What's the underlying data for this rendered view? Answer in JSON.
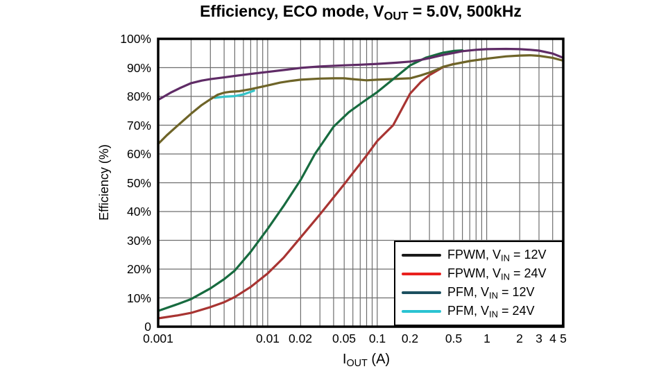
{
  "title": {
    "pre": "Efficiency, ECO mode, V",
    "sub": "OUT",
    "post": " = 5.0V, 500kHz"
  },
  "y_axis": {
    "label": "Efficiency (%)",
    "tick_labels": [
      "0",
      "10%",
      "20%",
      "30%",
      "40%",
      "50%",
      "60%",
      "70%",
      "80%",
      "90%",
      "100%"
    ]
  },
  "x_axis": {
    "label_pre": "I",
    "label_sub": "OUT",
    "label_post": " (A)",
    "ticks": [
      {
        "value": 0.001,
        "label": "0.001"
      },
      {
        "value": 0.01,
        "label": "0.01"
      },
      {
        "value": 0.02,
        "label": "0.02"
      },
      {
        "value": 0.05,
        "label": "0.05"
      },
      {
        "value": 0.1,
        "label": "0.1"
      },
      {
        "value": 0.2,
        "label": "0.2"
      },
      {
        "value": 0.5,
        "label": "0.5"
      },
      {
        "value": 1,
        "label": "1"
      },
      {
        "value": 2,
        "label": "2"
      },
      {
        "value": 3,
        "label": "3"
      },
      {
        "value": 4,
        "label": "4"
      },
      {
        "value": 5,
        "label": "5"
      }
    ]
  },
  "legend": {
    "position": "bottom-right",
    "items": [
      {
        "pre": "FPWM, V",
        "sub": "IN",
        "post": " = 12V",
        "swatch_color": "#1a1a1a"
      },
      {
        "pre": "FPWM, V",
        "sub": "IN",
        "post": " = 24V",
        "swatch_color": "#e9201e"
      },
      {
        "pre": "PFM, V",
        "sub": "IN",
        "post": " = 12V",
        "swatch_color": "#1c5060"
      },
      {
        "pre": "PFM, V",
        "sub": "IN",
        "post": " = 24V",
        "swatch_color": "#2ac3d2"
      }
    ]
  },
  "chart_data": {
    "type": "line",
    "title": "Efficiency, ECO mode, VOUT = 5.0V, 500kHz",
    "xlabel": "IOUT (A)",
    "ylabel": "Efficiency (%)",
    "x_scale": "log",
    "xlim": [
      0.001,
      5
    ],
    "ylim": [
      0,
      100
    ],
    "grid": true,
    "grid_color": "#6e6e6e",
    "frame_color": "#000000",
    "x_gridlines": [
      0.002,
      0.003,
      0.004,
      0.005,
      0.006,
      0.007,
      0.008,
      0.009,
      0.01,
      0.02,
      0.03,
      0.04,
      0.05,
      0.06,
      0.07,
      0.08,
      0.09,
      0.1,
      0.2,
      0.3,
      0.4,
      0.5,
      0.6,
      0.7,
      0.8,
      0.9,
      1,
      2,
      3,
      4,
      5
    ],
    "y_gridlines": [
      10,
      20,
      30,
      40,
      50,
      60,
      70,
      80,
      90
    ],
    "series": [
      {
        "name": "PFM, VIN = 24V (cyan segment visible below olive trace)",
        "line_color": "#35c4c8",
        "points": [
          [
            0.0033,
            79.5
          ],
          [
            0.004,
            79.9
          ],
          [
            0.005,
            80.1
          ],
          [
            0.006,
            80.7
          ],
          [
            0.0075,
            82.0
          ]
        ]
      },
      {
        "name": "FPWM, VIN = 24V",
        "line_color": "#a83432",
        "points": [
          [
            0.001,
            2.9
          ],
          [
            0.0015,
            3.9
          ],
          [
            0.002,
            4.8
          ],
          [
            0.003,
            6.8
          ],
          [
            0.004,
            8.5
          ],
          [
            0.005,
            10.3
          ],
          [
            0.007,
            13.8
          ],
          [
            0.01,
            18.5
          ],
          [
            0.014,
            24.0
          ],
          [
            0.02,
            31.0
          ],
          [
            0.03,
            39.0
          ],
          [
            0.05,
            49.5
          ],
          [
            0.08,
            59.5
          ],
          [
            0.1,
            64.5
          ],
          [
            0.14,
            70.0
          ],
          [
            0.2,
            81.0
          ],
          [
            0.25,
            85.0
          ],
          [
            0.3,
            87.4
          ],
          [
            0.4,
            90.2
          ],
          [
            0.5,
            91.3
          ]
        ]
      },
      {
        "name": "PFM, VIN = 24V",
        "line_color": "#6e6428",
        "points": [
          [
            0.001,
            63.5
          ],
          [
            0.0012,
            66.5
          ],
          [
            0.0015,
            69.8
          ],
          [
            0.002,
            74.0
          ],
          [
            0.0025,
            77.0
          ],
          [
            0.003,
            79.0
          ],
          [
            0.0035,
            80.6
          ],
          [
            0.004,
            81.3
          ],
          [
            0.0045,
            81.6
          ],
          [
            0.0055,
            81.8
          ],
          [
            0.007,
            82.5
          ],
          [
            0.01,
            83.8
          ],
          [
            0.013,
            84.8
          ],
          [
            0.0164,
            85.4
          ],
          [
            0.02,
            85.8
          ],
          [
            0.03,
            86.2
          ],
          [
            0.04,
            86.3
          ],
          [
            0.05,
            86.3
          ],
          [
            0.06,
            86.0
          ],
          [
            0.08,
            85.6
          ],
          [
            0.1,
            85.8
          ],
          [
            0.15,
            86.1
          ],
          [
            0.2,
            86.3
          ],
          [
            0.25,
            87.3
          ],
          [
            0.3,
            88.3
          ],
          [
            0.35,
            89.3
          ],
          [
            0.4,
            90.3
          ],
          [
            0.5,
            91.2
          ],
          [
            0.7,
            92.3
          ],
          [
            1,
            93.1
          ],
          [
            1.5,
            93.9
          ],
          [
            2,
            94.2
          ],
          [
            2.5,
            94.3
          ],
          [
            3,
            94.1
          ],
          [
            4,
            93.4
          ],
          [
            5,
            92.4
          ]
        ]
      },
      {
        "name": "FPWM, VIN = 12V",
        "line_color": "#176b3f",
        "points": [
          [
            0.001,
            5.5
          ],
          [
            0.0015,
            7.8
          ],
          [
            0.002,
            9.6
          ],
          [
            0.003,
            13.3
          ],
          [
            0.004,
            16.5
          ],
          [
            0.005,
            19.5
          ],
          [
            0.007,
            26.0
          ],
          [
            0.01,
            34.0
          ],
          [
            0.014,
            42.0
          ],
          [
            0.02,
            51.0
          ],
          [
            0.027,
            60.0
          ],
          [
            0.04,
            69.5
          ],
          [
            0.055,
            74.5
          ],
          [
            0.075,
            78.2
          ],
          [
            0.1,
            81.5
          ],
          [
            0.14,
            86.0
          ],
          [
            0.2,
            90.8
          ],
          [
            0.28,
            93.5
          ],
          [
            0.4,
            95.2
          ],
          [
            0.5,
            95.8
          ],
          [
            0.6,
            96.0
          ]
        ]
      },
      {
        "name": "PFM, VIN = 12V",
        "line_color": "#5f2b66",
        "points": [
          [
            0.001,
            78.8
          ],
          [
            0.0013,
            81.3
          ],
          [
            0.0016,
            83.0
          ],
          [
            0.002,
            84.6
          ],
          [
            0.0025,
            85.5
          ],
          [
            0.003,
            86.0
          ],
          [
            0.004,
            86.6
          ],
          [
            0.005,
            87.1
          ],
          [
            0.007,
            87.8
          ],
          [
            0.01,
            88.5
          ],
          [
            0.015,
            89.3
          ],
          [
            0.02,
            89.9
          ],
          [
            0.03,
            90.4
          ],
          [
            0.05,
            90.8
          ],
          [
            0.07,
            91.0
          ],
          [
            0.1,
            91.3
          ],
          [
            0.15,
            91.7
          ],
          [
            0.2,
            92.1
          ],
          [
            0.25,
            92.7
          ],
          [
            0.3,
            93.3
          ],
          [
            0.4,
            94.4
          ],
          [
            0.5,
            95.1
          ],
          [
            0.6,
            95.7
          ],
          [
            0.8,
            96.2
          ],
          [
            1,
            96.4
          ],
          [
            1.5,
            96.5
          ],
          [
            2,
            96.4
          ],
          [
            2.5,
            96.2
          ],
          [
            3,
            95.9
          ],
          [
            4,
            94.9
          ],
          [
            5,
            93.4
          ]
        ]
      }
    ]
  }
}
